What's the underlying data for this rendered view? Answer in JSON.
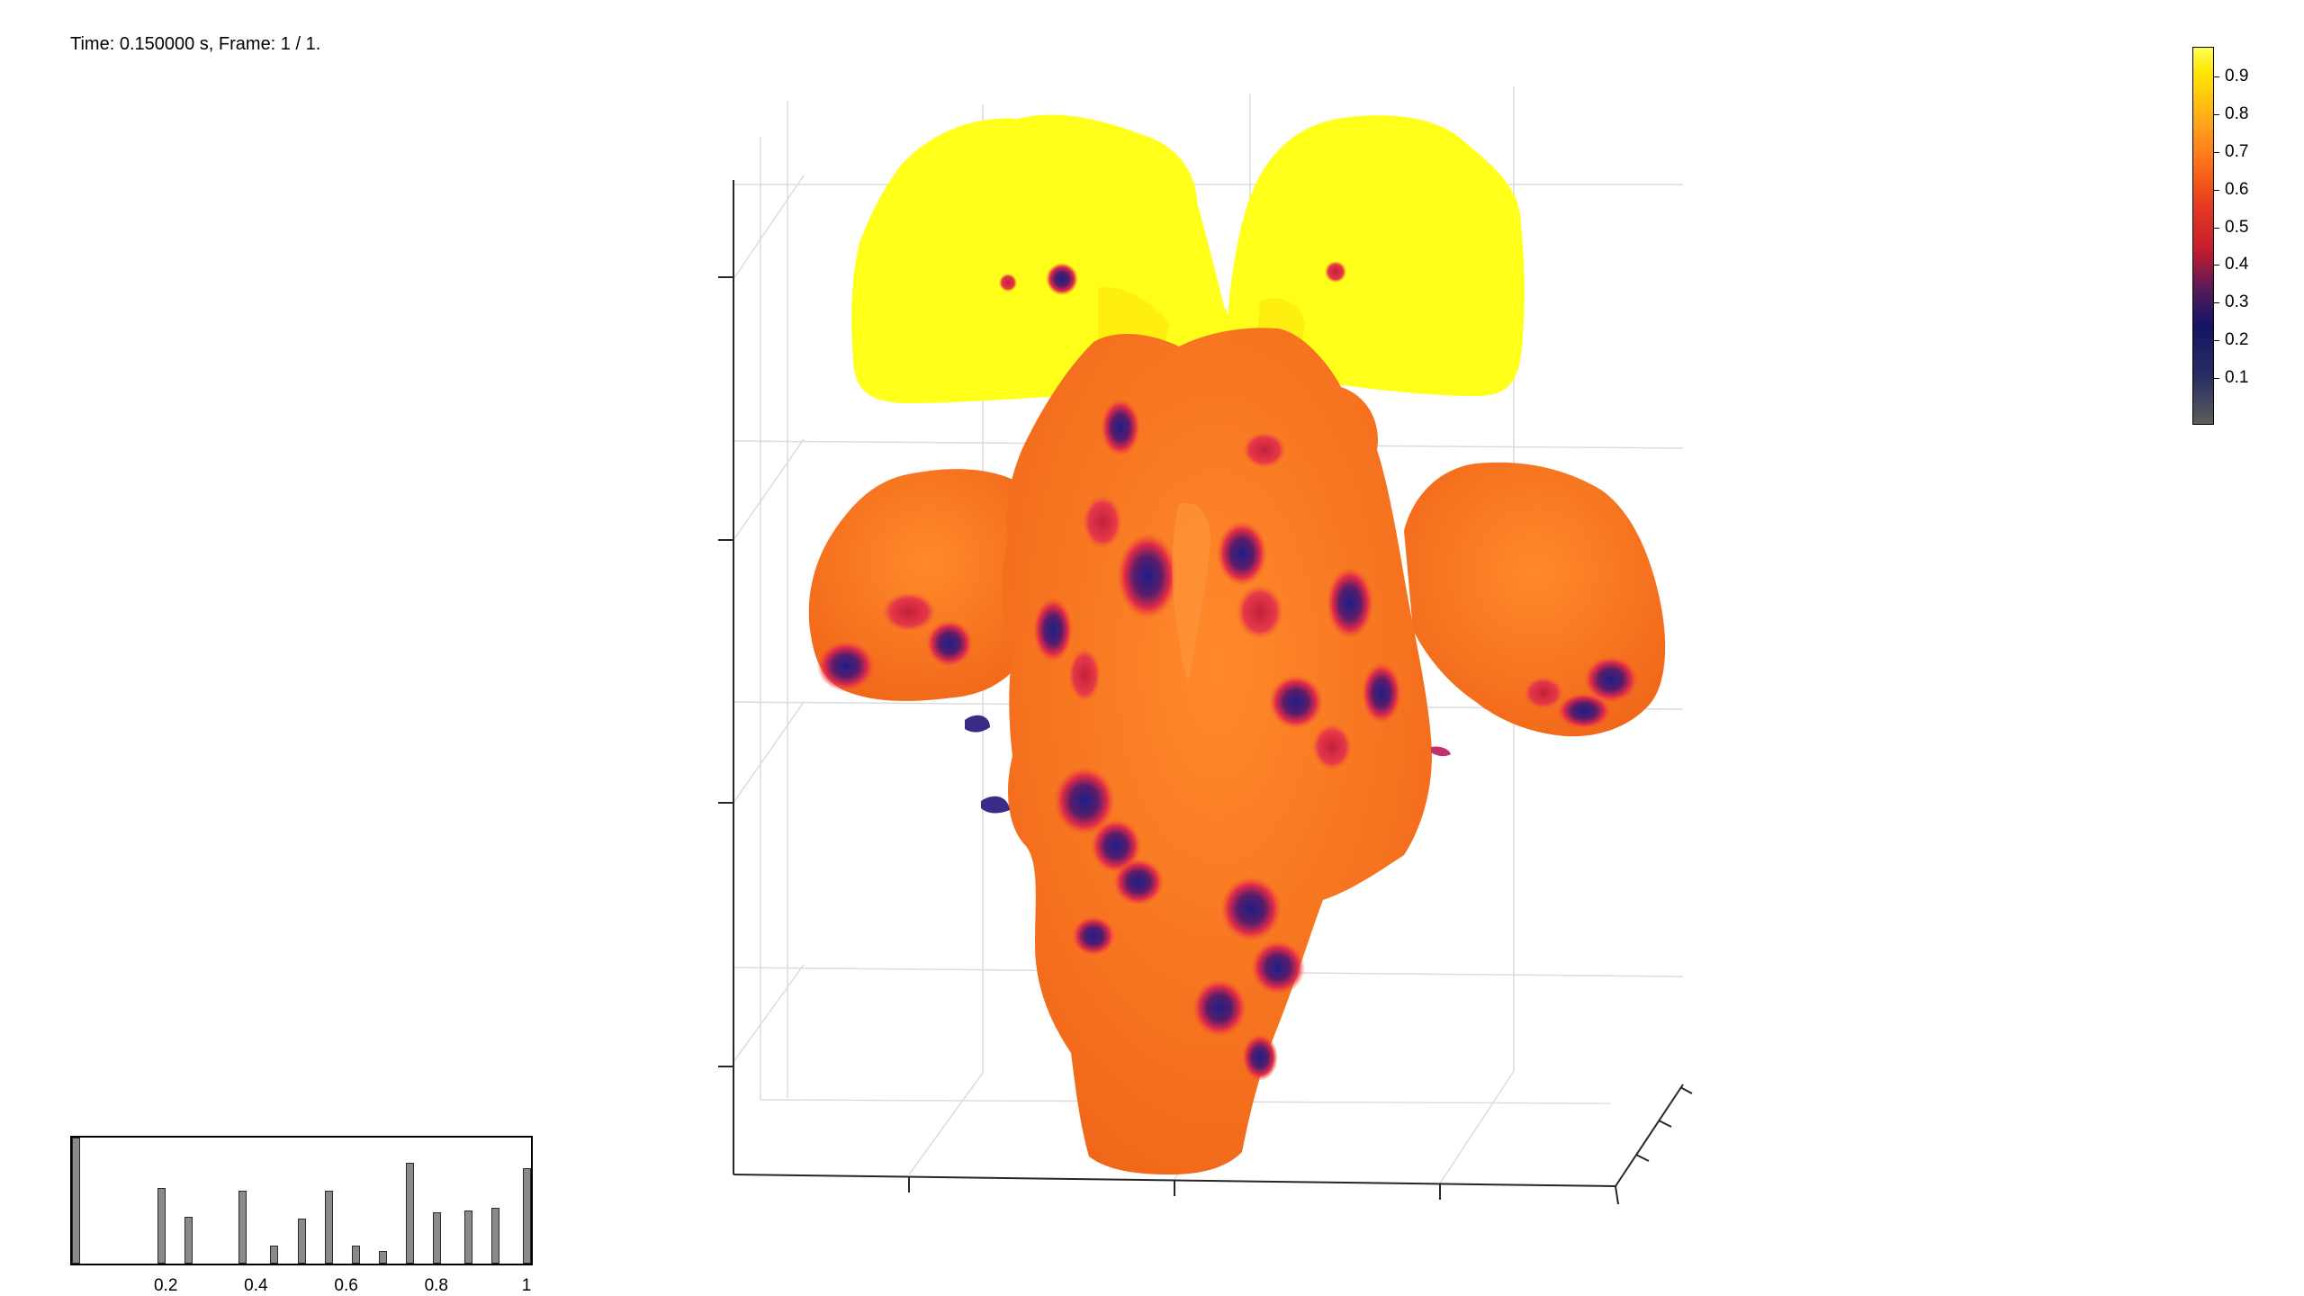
{
  "status": {
    "time_frame": "Time: 0.150000 s, Frame: 1 / 1."
  },
  "colorbar": {
    "ticks": [
      "0.9",
      "0.8",
      "0.7",
      "0.6",
      "0.5",
      "0.4",
      "0.3",
      "0.2",
      "0.1"
    ],
    "colormap": [
      "#5c5c5c",
      "#141466",
      "#c41a30",
      "#ff7418",
      "#ffe400",
      "#ffff55"
    ]
  },
  "histogram": {
    "tick_labels": [
      "0.2",
      "0.4",
      "0.6",
      "0.8",
      "1"
    ],
    "bar_heights": [
      1.0,
      0.6,
      0.37,
      0.58,
      0.14,
      0.36,
      0.58,
      0.14,
      0.1,
      0.8,
      0.41,
      0.42,
      0.44,
      0.76
    ],
    "bar_positions": [
      0.0,
      0.19,
      0.25,
      0.37,
      0.44,
      0.5,
      0.56,
      0.62,
      0.68,
      0.74,
      0.8,
      0.87,
      0.93,
      1.0
    ],
    "bar_color": "#8a8a8a"
  },
  "surface_colors": {
    "orange": "#ff7a1a",
    "yellow": "#ffff19",
    "red": "#e8283a",
    "blue": "#2a2d8a"
  }
}
